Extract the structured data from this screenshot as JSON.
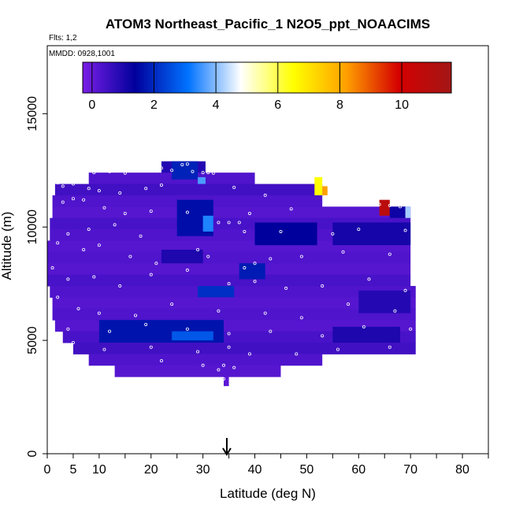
{
  "chart_data": {
    "type": "heatmap",
    "title": "ATOM3 Northeast_Pacific_1 N2O5_ppt_NOAACIMS",
    "annotations": [
      "Flts: 1,2",
      "MMDD: 0928,1001"
    ],
    "xlabel": "Latitude (deg N)",
    "ylabel": "Altitude (m)",
    "xlim": [
      0,
      85
    ],
    "ylim": [
      0,
      18000
    ],
    "x_ticks": [
      0,
      5,
      10,
      20,
      30,
      40,
      50,
      60,
      70,
      80
    ],
    "x_minor_ticks": [
      15,
      25,
      35,
      45,
      55,
      65,
      75,
      85
    ],
    "y_ticks": [
      0,
      5000,
      10000,
      15000
    ],
    "colorbar": {
      "range": [
        -0.3,
        11.6
      ],
      "ticks": [
        0,
        2,
        4,
        6,
        8,
        10
      ],
      "colors": [
        "#7a1fe6",
        "#00009c",
        "#0072ff",
        "#ffffff",
        "#ffff00",
        "#ffa000",
        "#d40000",
        "#a31616"
      ]
    },
    "arrow_marker_latitude": 34.6,
    "field_rows": [
      {
        "alt": [
          12400,
          12900
        ],
        "lat": [
          22,
          30.5
        ],
        "value": 0.9
      },
      {
        "alt": [
          11900,
          12400
        ],
        "lat": [
          8,
          40
        ],
        "value": 0.3
      },
      {
        "alt": [
          11400,
          11900
        ],
        "lat": [
          1.5,
          53
        ],
        "value": 0.5
      },
      {
        "alt": [
          10900,
          11400
        ],
        "lat": [
          1,
          53
        ],
        "value": 0.3
      },
      {
        "alt": [
          10400,
          10900
        ],
        "lat": [
          1,
          70
        ],
        "value": 0.2
      },
      {
        "alt": [
          9900,
          10400
        ],
        "lat": [
          0.5,
          70
        ],
        "value": 0.4
      },
      {
        "alt": [
          9400,
          9900
        ],
        "lat": [
          0.5,
          70
        ],
        "value": 0.3
      },
      {
        "alt": [
          8900,
          9400
        ],
        "lat": [
          0,
          70
        ],
        "value": 0.2
      },
      {
        "alt": [
          8400,
          8900
        ],
        "lat": [
          0,
          70
        ],
        "value": 0.3
      },
      {
        "alt": [
          7900,
          8400
        ],
        "lat": [
          0,
          70
        ],
        "value": 0.2
      },
      {
        "alt": [
          7400,
          7900
        ],
        "lat": [
          0,
          70
        ],
        "value": 0.4
      },
      {
        "alt": [
          6900,
          7400
        ],
        "lat": [
          0.5,
          71
        ],
        "value": 0.3
      },
      {
        "alt": [
          6400,
          6900
        ],
        "lat": [
          1,
          71
        ],
        "value": 0.2
      },
      {
        "alt": [
          5900,
          6400
        ],
        "lat": [
          1,
          71
        ],
        "value": 0.3
      },
      {
        "alt": [
          5400,
          5900
        ],
        "lat": [
          1.5,
          71
        ],
        "value": 0.2
      },
      {
        "alt": [
          4900,
          5400
        ],
        "lat": [
          3,
          71
        ],
        "value": 0.4
      },
      {
        "alt": [
          4400,
          4900
        ],
        "lat": [
          5,
          71
        ],
        "value": 0.5
      },
      {
        "alt": [
          3900,
          4400
        ],
        "lat": [
          8,
          53
        ],
        "value": 0.3
      },
      {
        "alt": [
          3400,
          3900
        ],
        "lat": [
          13,
          45
        ],
        "value": 0.2
      },
      {
        "alt": [
          3000,
          3400
        ],
        "lat": [
          34,
          35
        ],
        "value": 0.1
      }
    ],
    "features": [
      {
        "alt": [
          11400,
          12200
        ],
        "lat": [
          51.5,
          53
        ],
        "value": 6.5
      },
      {
        "alt": [
          11400,
          11800
        ],
        "lat": [
          53,
          54
        ],
        "value": 8.2
      },
      {
        "alt": [
          10500,
          11200
        ],
        "lat": [
          64,
          66
        ],
        "value": 10.8
      },
      {
        "alt": [
          10400,
          10900
        ],
        "lat": [
          66,
          69
        ],
        "value": 1.2
      },
      {
        "alt": [
          10400,
          10900
        ],
        "lat": [
          69,
          70
        ],
        "value": 4.2
      },
      {
        "alt": [
          12100,
          12900
        ],
        "lat": [
          24,
          29
        ],
        "value": 1.9
      },
      {
        "alt": [
          11900,
          12200
        ],
        "lat": [
          29,
          30.5
        ],
        "value": 3.6
      },
      {
        "alt": [
          9600,
          11200
        ],
        "lat": [
          25,
          32
        ],
        "value": 1.6
      },
      {
        "alt": [
          9800,
          10500
        ],
        "lat": [
          30,
          32
        ],
        "value": 3.3
      },
      {
        "alt": [
          9200,
          10200
        ],
        "lat": [
          40,
          52
        ],
        "value": 1.4
      },
      {
        "alt": [
          9200,
          10200
        ],
        "lat": [
          55,
          70
        ],
        "value": 1.1
      },
      {
        "alt": [
          7700,
          8400
        ],
        "lat": [
          37,
          42
        ],
        "value": 1.8
      },
      {
        "alt": [
          6900,
          7400
        ],
        "lat": [
          29,
          36
        ],
        "value": 2.1
      },
      {
        "alt": [
          4900,
          5900
        ],
        "lat": [
          10,
          34
        ],
        "value": 1.7
      },
      {
        "alt": [
          5000,
          5400
        ],
        "lat": [
          24,
          32
        ],
        "value": 2.7
      },
      {
        "alt": [
          4900,
          5600
        ],
        "lat": [
          55,
          68
        ],
        "value": 1.0
      },
      {
        "alt": [
          6200,
          7200
        ],
        "lat": [
          60,
          70
        ],
        "value": 0.9
      },
      {
        "alt": [
          8400,
          9000
        ],
        "lat": [
          22,
          30
        ],
        "value": 1.0
      }
    ],
    "sample_points": [
      [
        26,
        12750
      ],
      [
        27,
        12780
      ],
      [
        22,
        12600
      ],
      [
        24,
        12500
      ],
      [
        28,
        12450
      ],
      [
        30,
        12400
      ],
      [
        31,
        12400
      ],
      [
        32,
        12380
      ],
      [
        9,
        12400
      ],
      [
        12,
        12450
      ],
      [
        15,
        12380
      ],
      [
        2,
        11950
      ],
      [
        3,
        11800
      ],
      [
        5,
        11900
      ],
      [
        8,
        11700
      ],
      [
        10,
        11600
      ],
      [
        14,
        11500
      ],
      [
        19,
        11700
      ],
      [
        22,
        11850
      ],
      [
        36,
        11750
      ],
      [
        42,
        11400
      ],
      [
        3,
        11100
      ],
      [
        5,
        11250
      ],
      [
        7,
        11200
      ],
      [
        11,
        10850
      ],
      [
        15,
        10600
      ],
      [
        20,
        10700
      ],
      [
        27,
        10650
      ],
      [
        39,
        10600
      ],
      [
        47,
        10800
      ],
      [
        61,
        11100
      ],
      [
        63,
        11050
      ],
      [
        64,
        11000
      ],
      [
        66,
        10950
      ],
      [
        68,
        10900
      ],
      [
        62,
        11300
      ],
      [
        4,
        9700
      ],
      [
        8,
        9900
      ],
      [
        13,
        10100
      ],
      [
        18,
        9600
      ],
      [
        33,
        10200
      ],
      [
        35,
        10200
      ],
      [
        37,
        10200
      ],
      [
        38,
        9800
      ],
      [
        45,
        9800
      ],
      [
        55,
        9700
      ],
      [
        60,
        9900
      ],
      [
        69,
        9850
      ],
      [
        2,
        9300
      ],
      [
        7,
        9000
      ],
      [
        10,
        9200
      ],
      [
        16,
        8700
      ],
      [
        21,
        8400
      ],
      [
        29,
        9000
      ],
      [
        31,
        8700
      ],
      [
        38,
        8200
      ],
      [
        40,
        8400
      ],
      [
        43,
        8600
      ],
      [
        49,
        8700
      ],
      [
        57,
        8900
      ],
      [
        66,
        8800
      ],
      [
        1,
        8200
      ],
      [
        4,
        7700
      ],
      [
        9,
        7800
      ],
      [
        14,
        7400
      ],
      [
        20,
        7900
      ],
      [
        27,
        8100
      ],
      [
        35,
        7500
      ],
      [
        40,
        7600
      ],
      [
        46,
        7300
      ],
      [
        53,
        7400
      ],
      [
        62,
        7700
      ],
      [
        69,
        7200
      ],
      [
        2,
        6900
      ],
      [
        6,
        6400
      ],
      [
        10,
        6200
      ],
      [
        17,
        6100
      ],
      [
        24,
        6600
      ],
      [
        33,
        6300
      ],
      [
        42,
        6200
      ],
      [
        49,
        6000
      ],
      [
        58,
        6600
      ],
      [
        67,
        6300
      ],
      [
        1,
        5700
      ],
      [
        4,
        5500
      ],
      [
        12,
        5400
      ],
      [
        19,
        5700
      ],
      [
        27,
        5500
      ],
      [
        35,
        5300
      ],
      [
        43,
        5400
      ],
      [
        53,
        5200
      ],
      [
        61,
        5600
      ],
      [
        70,
        5500
      ],
      [
        5,
        4900
      ],
      [
        11,
        4600
      ],
      [
        20,
        4700
      ],
      [
        29,
        4500
      ],
      [
        35,
        4700
      ],
      [
        39,
        4400
      ],
      [
        48,
        4400
      ],
      [
        56,
        4600
      ],
      [
        66,
        4700
      ],
      [
        22,
        4100
      ],
      [
        30,
        3900
      ],
      [
        34,
        3900
      ],
      [
        36,
        3800
      ],
      [
        33,
        3700
      ],
      [
        34,
        3300
      ]
    ]
  }
}
